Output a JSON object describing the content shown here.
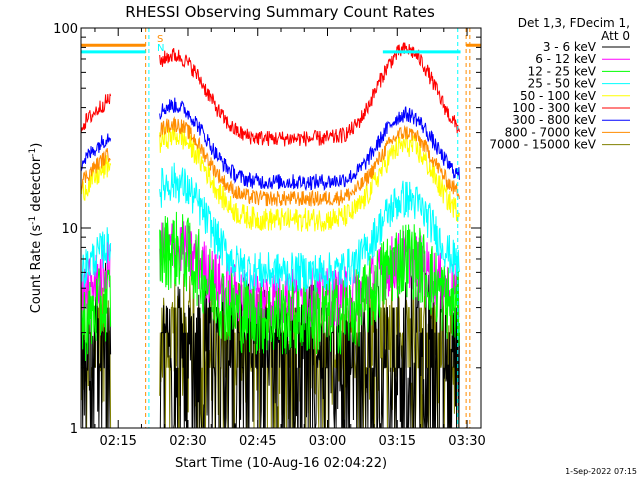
{
  "chart_data": {
    "type": "line",
    "title": "RHESSI Observing Summary Count Rates",
    "xlabel": "Start Time (10-Aug-16 02:04:22)",
    "ylabel_main": "Count Rate (s",
    "ylabel_sup1": "-1",
    "ylabel_mid": " detector",
    "ylabel_sup2": "-1",
    "ylabel_end": ")",
    "y_scale": "log",
    "ylim": [
      1,
      100
    ],
    "xlim_minutes": [
      7.6,
      93.6
    ],
    "x_ticks": [
      {
        "label": "02:15",
        "t": 15.6
      },
      {
        "label": "02:30",
        "t": 30.6
      },
      {
        "label": "02:45",
        "t": 45.6
      },
      {
        "label": "03:00",
        "t": 60.6
      },
      {
        "label": "03:15",
        "t": 75.6
      },
      {
        "label": "03:30",
        "t": 90.6
      }
    ],
    "y_ticks": [
      {
        "label": "1",
        "v": 1
      },
      {
        "label": "10",
        "v": 10
      },
      {
        "label": "100",
        "v": 100
      }
    ],
    "legend_header": [
      "Det 1,3, FDecim 1,",
      "Att 0"
    ],
    "legend_position": "top-right, outside plot",
    "flag_marks": [
      "S",
      "N"
    ],
    "timestamp": "1-Sep-2022 07:15",
    "gaps_minutes": [
      [
        14.0,
        24.5
      ],
      [
        89.0,
        93.6
      ]
    ],
    "series": [
      {
        "name": "3 - 6 keV",
        "color": "#000000",
        "base": 1.6,
        "peak1": 0.4,
        "peak2": 0.4,
        "pre": 1.5,
        "noise": 0.55
      },
      {
        "name": "6 - 12 keV",
        "color": "#ff00ff",
        "base": 4.5,
        "peak1": 3.5,
        "peak2": 2.5,
        "pre": 4.5,
        "noise": 0.15
      },
      {
        "name": "12 - 25 keV",
        "color": "#00ff00",
        "base": 3.6,
        "peak1": 4.2,
        "peak2": 3.5,
        "pre": 3.2,
        "noise": 0.2
      },
      {
        "name": "25 - 50 keV",
        "color": "#00ffff",
        "base": 6.0,
        "peak1": 11.0,
        "peak2": 8.0,
        "pre": 6.0,
        "noise": 0.1
      },
      {
        "name": "50 - 100 keV",
        "color": "#ffff00",
        "base": 11.0,
        "peak1": 18.0,
        "peak2": 15.0,
        "pre": 15.0,
        "noise": 0.06
      },
      {
        "name": "100 - 300 keV",
        "color": "#ff0000",
        "base": 28.0,
        "peak1": 45.0,
        "peak2": 50.0,
        "pre": 32.0,
        "noise": 0.04
      },
      {
        "name": "300 - 800 keV",
        "color": "#0000ff",
        "base": 17.0,
        "peak1": 24.0,
        "peak2": 20.0,
        "pre": 21.0,
        "noise": 0.04
      },
      {
        "name": "800 - 7000 keV",
        "color": "#ff8c00",
        "base": 14.0,
        "peak1": 19.0,
        "peak2": 16.0,
        "pre": 17.0,
        "noise": 0.04
      },
      {
        "name": "7000 - 15000 keV",
        "color": "#808000",
        "base": 2.4,
        "peak1": 0.3,
        "peak2": 0.3,
        "pre": 2.3,
        "noise": 0.35
      }
    ],
    "flag_bars": [
      {
        "color": "#ff8c00",
        "level": 82,
        "spans": [
          [
            7.6,
            21.5
          ],
          [
            90.4,
            93.6
          ]
        ]
      },
      {
        "color": "#00ffff",
        "level": 76,
        "spans": [
          [
            7.6,
            21.5
          ],
          [
            72.5,
            89.2
          ]
        ]
      }
    ]
  }
}
